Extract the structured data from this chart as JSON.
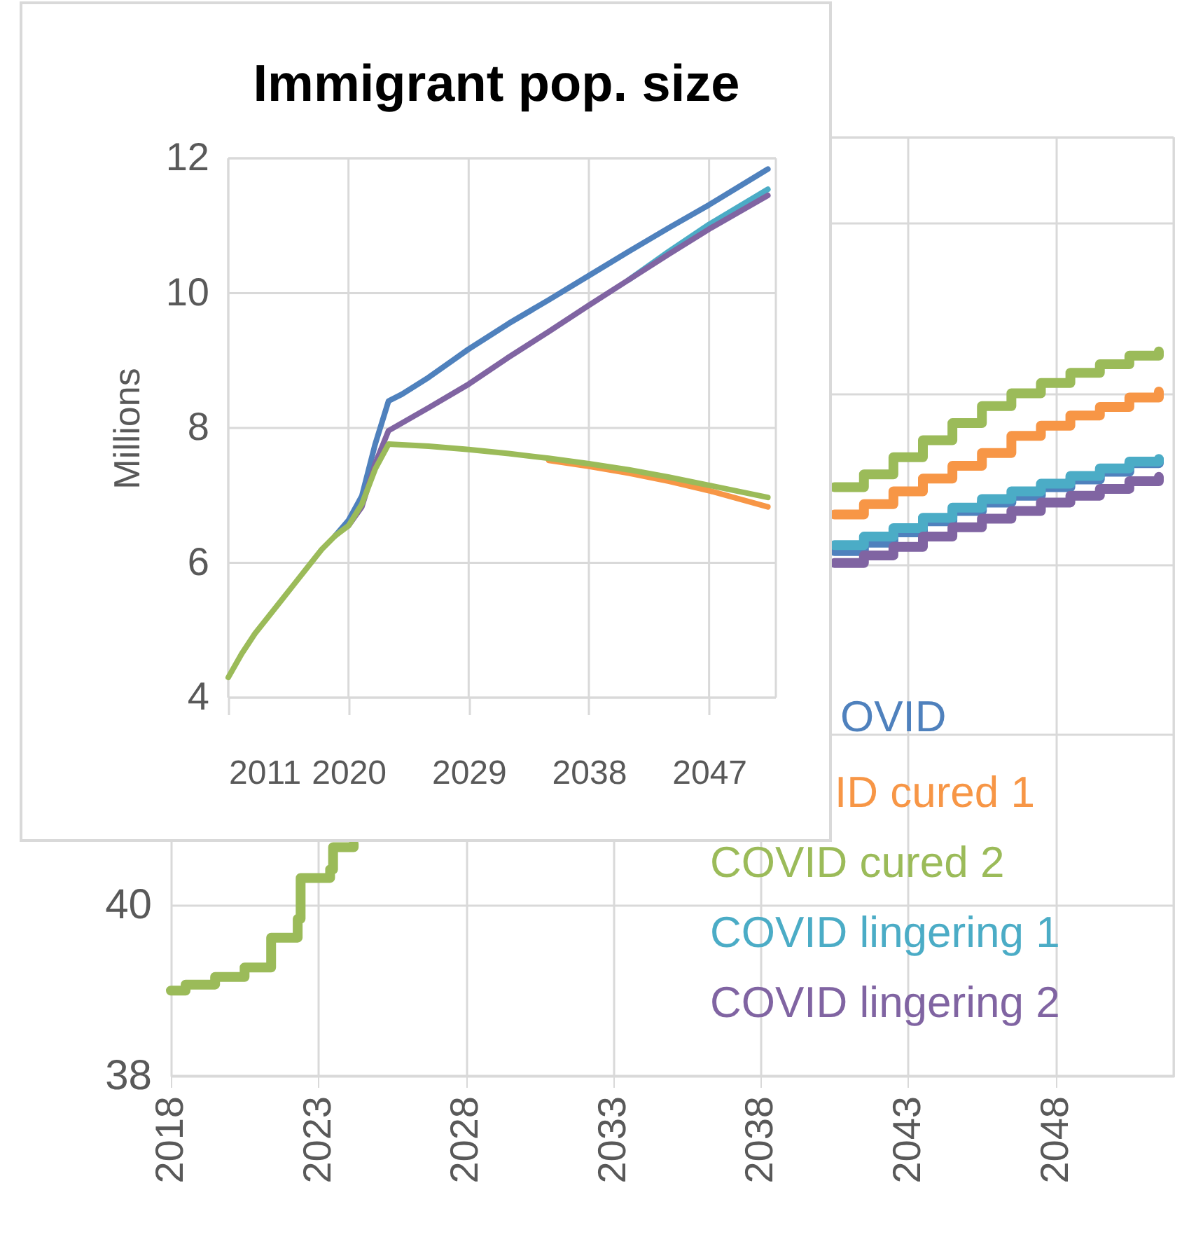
{
  "chart_data": [
    {
      "type": "step",
      "xlim": [
        2018,
        2052
      ],
      "xticks": [
        2018,
        2023,
        2028,
        2033,
        2038,
        2043,
        2048
      ],
      "ylim": [
        38,
        49
      ],
      "yticks": [
        38,
        40,
        {
          "value": 42,
          "label": null
        },
        {
          "value": 44,
          "label": null
        },
        {
          "value": 46,
          "label": null
        },
        {
          "value": 48,
          "label": null
        }
      ],
      "grid": true,
      "legend": "bottom right",
      "line_style": "solid",
      "series": [
        {
          "name": "OVID",
          "color": "#4f81bd",
          "x": [
            2040.5,
            2041.5,
            2042.5,
            2043.5,
            2044.5,
            2045.5,
            2046.5,
            2047.5,
            2048.5,
            2049.5,
            2050.5,
            2051.5
          ],
          "values": [
            44.15,
            44.25,
            44.37,
            44.5,
            44.62,
            44.72,
            44.8,
            44.9,
            44.99,
            45.08,
            45.18,
            45.22
          ]
        },
        {
          "name": "ID cured 1",
          "color": "#f79646",
          "x": [
            2040.5,
            2041.5,
            2042.5,
            2043.5,
            2044.5,
            2045.5,
            2046.5,
            2047.5,
            2048.5,
            2049.5,
            2050.5,
            2051.5
          ],
          "values": [
            44.58,
            44.7,
            44.85,
            45.0,
            45.15,
            45.3,
            45.5,
            45.62,
            45.74,
            45.84,
            45.95,
            46.02
          ]
        },
        {
          "name": "COVID cured 2",
          "color": "#9bbb59",
          "x": [
            2018,
            2018.5,
            2019.5,
            2020.5,
            2021.4,
            2022.3,
            2022.4,
            2023.4,
            2023.5,
            2024.2,
            null,
            2040.5,
            2041.5,
            2042.5,
            2043.5,
            2044.5,
            2045.5,
            2046.5,
            2047.5,
            2048.5,
            2049.5,
            2050.5,
            2051.5
          ],
          "values": [
            39.0,
            39.07,
            39.16,
            39.27,
            39.62,
            39.84,
            40.32,
            40.42,
            40.68,
            40.72,
            null,
            44.9,
            45.05,
            45.25,
            45.45,
            45.65,
            45.85,
            46.0,
            46.12,
            46.24,
            46.34,
            46.44,
            46.49
          ]
        },
        {
          "name": "COVID lingering 1",
          "color": "#4bacc6",
          "x": [
            2040.5,
            2041.5,
            2042.5,
            2043.5,
            2044.5,
            2045.5,
            2046.5,
            2047.5,
            2048.5,
            2049.5,
            2050.5,
            2051.5
          ],
          "values": [
            44.22,
            44.32,
            44.42,
            44.54,
            44.66,
            44.76,
            44.85,
            44.94,
            45.03,
            45.12,
            45.2,
            45.23
          ]
        },
        {
          "name": "COVID lingering 2",
          "color": "#8064a2",
          "x": [
            2040.5,
            2041.5,
            2042.5,
            2043.5,
            2044.5,
            2045.5,
            2046.5,
            2047.5,
            2048.5,
            2049.5,
            2050.5,
            2051.5
          ],
          "values": [
            44.01,
            44.1,
            44.2,
            44.32,
            44.43,
            44.53,
            44.62,
            44.72,
            44.8,
            44.88,
            44.97,
            45.02
          ]
        }
      ]
    },
    {
      "type": "line",
      "title": "Immigrant pop. size",
      "ylabel": "Millions",
      "xlim": [
        2011,
        2052
      ],
      "xticks": [
        2011,
        2020,
        2029,
        2038,
        2047
      ],
      "ylim": [
        4,
        12
      ],
      "yticks": [
        4,
        6,
        8,
        10,
        12
      ],
      "grid": true,
      "legend": false,
      "line_style": "solid",
      "series": [
        {
          "color": "#4f81bd",
          "x": [
            2019,
            2020,
            2021,
            2022,
            2023,
            2024,
            2026,
            2029,
            2032,
            2035,
            2038,
            2041,
            2044,
            2047,
            2051.4
          ],
          "values": [
            6.4,
            6.63,
            6.99,
            7.76,
            8.4,
            8.5,
            8.75,
            9.17,
            9.55,
            9.9,
            10.26,
            10.62,
            10.97,
            11.31,
            11.84
          ]
        },
        {
          "color": "#f79646",
          "x": [
            2035,
            2038,
            2041,
            2044,
            2047,
            2051.4
          ],
          "values": [
            7.52,
            7.43,
            7.33,
            7.21,
            7.07,
            6.83
          ]
        },
        {
          "color": "#9bbb59",
          "x": [
            2011,
            2012,
            2013,
            2014,
            2015,
            2016,
            2017,
            2018,
            2019,
            2020,
            2021,
            2022,
            2023,
            2026,
            2029,
            2032,
            2035,
            2038,
            2041,
            2044,
            2047,
            2051.4
          ],
          "values": [
            4.3,
            4.65,
            4.95,
            5.2,
            5.45,
            5.7,
            5.95,
            6.2,
            6.4,
            6.55,
            6.87,
            7.39,
            7.76,
            7.73,
            7.68,
            7.62,
            7.55,
            7.47,
            7.38,
            7.27,
            7.15,
            6.97
          ]
        },
        {
          "color": "#4bacc6",
          "x": [
            2041,
            2044,
            2047,
            2051.4
          ],
          "values": [
            10.2,
            10.62,
            11.02,
            11.54
          ]
        },
        {
          "color": "#8064a2",
          "x": [
            2020,
            2021,
            2022,
            2023,
            2026,
            2029,
            2032,
            2035,
            2038,
            2041,
            2044,
            2047,
            2051.4
          ],
          "values": [
            6.55,
            6.83,
            7.47,
            7.96,
            8.3,
            8.65,
            9.05,
            9.43,
            9.82,
            10.2,
            10.58,
            10.95,
            11.45
          ]
        }
      ]
    }
  ]
}
